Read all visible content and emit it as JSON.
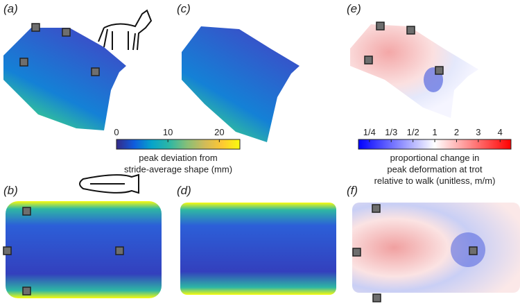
{
  "panels": [
    "(a)",
    "(c)",
    "(e)",
    "(b)",
    "(d)",
    "(f)"
  ],
  "colorbars": [
    {
      "title": [
        "peak deviation from",
        "stride-average shape (mm)"
      ],
      "lim": [
        0,
        24
      ],
      "ticks": [
        0,
        10,
        20
      ],
      "scale": "linear",
      "colors": [
        "#352a87",
        "#0f5cdd",
        "#06a4ca",
        "#2eb7a4",
        "#87bf77",
        "#d1bb59",
        "#fec832",
        "#f9fb0e"
      ]
    },
    {
      "title": [
        "proportional change in",
        "peak deformation at trot",
        "relative to walk (unitless, m/m)"
      ],
      "lim": [
        0.222,
        4.5
      ],
      "ticks": [
        {
          "value": 0.25,
          "label": "1/4"
        },
        {
          "value": 0.3333,
          "label": "1/3"
        },
        {
          "value": 0.5,
          "label": "1/2"
        },
        1,
        2,
        3,
        4
      ],
      "scale": "reciprocal",
      "colors": [
        "#0000ff",
        "#ffffff",
        "#ff0000"
      ]
    }
  ]
}
